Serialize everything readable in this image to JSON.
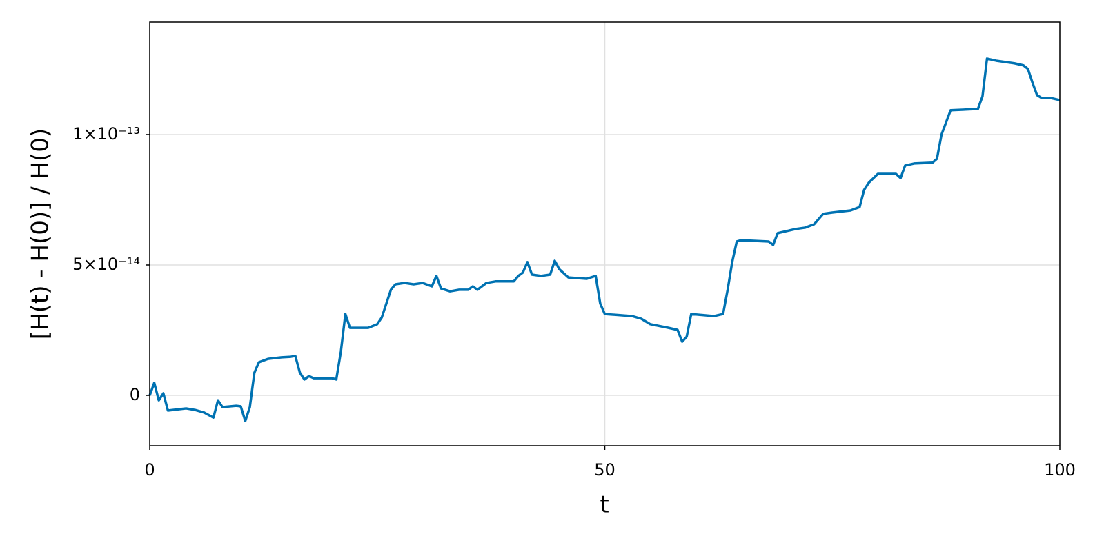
{
  "chart_data": {
    "type": "line",
    "xlabel": "t",
    "ylabel": "[H(t) - H(0)] / H(0)",
    "xlim": [
      0,
      100
    ],
    "xticks": [
      0,
      50,
      100
    ],
    "ylim": [
      -1.93e-14,
      1.431e-13
    ],
    "yticks": [
      0,
      {
        "value": 5e-14,
        "label": "5×10⁻¹⁴"
      },
      {
        "value": 1e-13,
        "label": "1×10⁻¹³"
      }
    ],
    "grid": true,
    "x": [
      0,
      0.5,
      1,
      1.5,
      2,
      4,
      5,
      6,
      7,
      7.5,
      8,
      9.5,
      10,
      10.5,
      11,
      11.5,
      12,
      13,
      14.5,
      15.5,
      16,
      16.5,
      17,
      17.5,
      18,
      20,
      20.5,
      21,
      21.5,
      22,
      24,
      25,
      25.5,
      26,
      26.5,
      27,
      28,
      29,
      30,
      31,
      31.5,
      32,
      33,
      34,
      35,
      35.5,
      36,
      37,
      38,
      40,
      40.5,
      41,
      41.5,
      42,
      43,
      44,
      44.5,
      45,
      46,
      48,
      49,
      49.5,
      50,
      53,
      54,
      55,
      57,
      58,
      58.5,
      59,
      59.5,
      62,
      63,
      63.5,
      64,
      64.5,
      65,
      68,
      68.5,
      69,
      70,
      71,
      72,
      73,
      74,
      75,
      77,
      78,
      78.5,
      79,
      80,
      82,
      82.5,
      83,
      84,
      86,
      86.5,
      87,
      88,
      91,
      91.5,
      92,
      93,
      94,
      95,
      96,
      96.5,
      97,
      97.5,
      98,
      99,
      100
    ],
    "series": [
      {
        "color": "#0072b2",
        "values": [
          0,
          4.8e-15,
          -1.9e-15,
          8e-16,
          -5.8e-15,
          -5e-15,
          -5.6e-15,
          -6.6e-15,
          -8.5e-15,
          -1.9e-15,
          -4.5e-15,
          -4e-15,
          -4.2e-15,
          -9.8e-15,
          -4.5e-15,
          8.7e-15,
          1.27e-14,
          1.4e-14,
          1.46e-14,
          1.48e-14,
          1.51e-14,
          8.7e-15,
          6.1e-15,
          7.4e-15,
          6.6e-15,
          6.6e-15,
          6.1e-15,
          1.67e-14,
          3.12e-14,
          2.59e-14,
          2.59e-14,
          2.73e-14,
          2.99e-14,
          3.52e-14,
          4.05e-14,
          4.26e-14,
          4.31e-14,
          4.26e-14,
          4.31e-14,
          4.18e-14,
          4.58e-14,
          4.1e-14,
          3.99e-14,
          4.05e-14,
          4.05e-14,
          4.18e-14,
          4.05e-14,
          4.31e-14,
          4.37e-14,
          4.37e-14,
          4.58e-14,
          4.71e-14,
          5.11e-14,
          4.63e-14,
          4.58e-14,
          4.63e-14,
          5.16e-14,
          4.84e-14,
          4.52e-14,
          4.47e-14,
          4.58e-14,
          3.52e-14,
          3.12e-14,
          3.04e-14,
          2.94e-14,
          2.73e-14,
          2.59e-14,
          2.51e-14,
          2.06e-14,
          2.25e-14,
          3.12e-14,
          3.04e-14,
          3.12e-14,
          4.05e-14,
          5.11e-14,
          5.9e-14,
          5.95e-14,
          5.9e-14,
          5.77e-14,
          6.22e-14,
          6.3e-14,
          6.38e-14,
          6.43e-14,
          6.56e-14,
          6.96e-14,
          7.01e-14,
          7.09e-14,
          7.22e-14,
          7.88e-14,
          8.15e-14,
          8.49e-14,
          8.49e-14,
          8.33e-14,
          8.81e-14,
          8.89e-14,
          8.92e-14,
          9.07e-14,
          1e-13,
          1.093e-13,
          1.098e-13,
          1.146e-13,
          1.291e-13,
          1.283e-13,
          1.278e-13,
          1.273e-13,
          1.265e-13,
          1.251e-13,
          1.198e-13,
          1.151e-13,
          1.14e-13,
          1.14e-13,
          1.132e-13
        ]
      }
    ]
  }
}
